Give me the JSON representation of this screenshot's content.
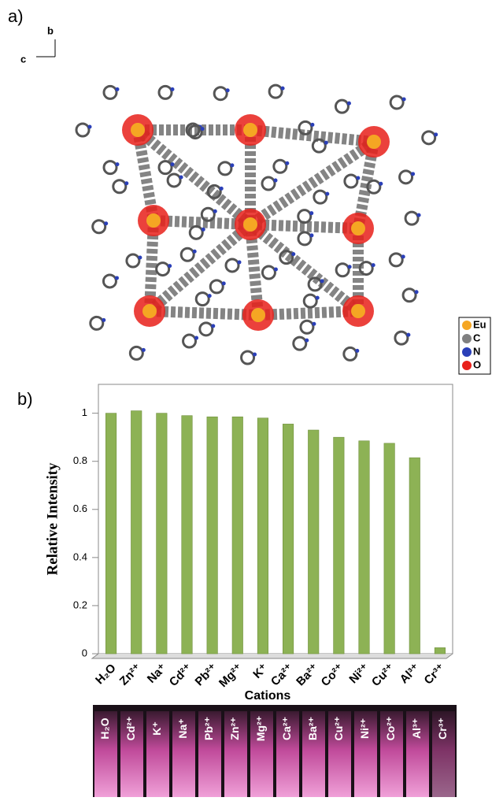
{
  "panel_a": {
    "label": "a)",
    "axis_b": "b",
    "axis_c": "c",
    "legend": [
      "Eu",
      "C",
      "N",
      "O"
    ],
    "legend_colors": [
      "#f5a623",
      "#808080",
      "#2a3fb8",
      "#e8201a"
    ]
  },
  "panel_b_label": "b)",
  "chart_data": {
    "type": "bar",
    "categories": [
      "H₂O",
      "Zn²⁺",
      "Na⁺",
      "Cd²⁺",
      "Pb²⁺",
      "Mg²⁺",
      "K⁺",
      "Ca²⁺",
      "Ba²⁺",
      "Co²⁺",
      "Ni²⁺",
      "Cu²⁺",
      "Al³⁺",
      "Cr³⁺"
    ],
    "values": [
      1.0,
      1.01,
      1.0,
      0.99,
      0.985,
      0.985,
      0.98,
      0.955,
      0.93,
      0.9,
      0.885,
      0.875,
      0.815,
      0.025
    ],
    "color": "#8db255",
    "ylim": [
      0,
      1.12
    ],
    "yticks": [
      0,
      0.2,
      0.4,
      0.6,
      0.8,
      1
    ],
    "y_label": "Relative Intensity",
    "x_label": "Cations"
  },
  "photo": {
    "labels": [
      "H₂O",
      "Cd²⁺",
      "K⁺",
      "Na⁺",
      "Pb²⁺",
      "Zn²⁺",
      "Mg²⁺",
      "Ca²⁺",
      "Ba²⁺",
      "Cu²⁺",
      "Ni²⁺",
      "Co²⁺",
      "Al³⁺",
      "Cr³⁺"
    ]
  }
}
